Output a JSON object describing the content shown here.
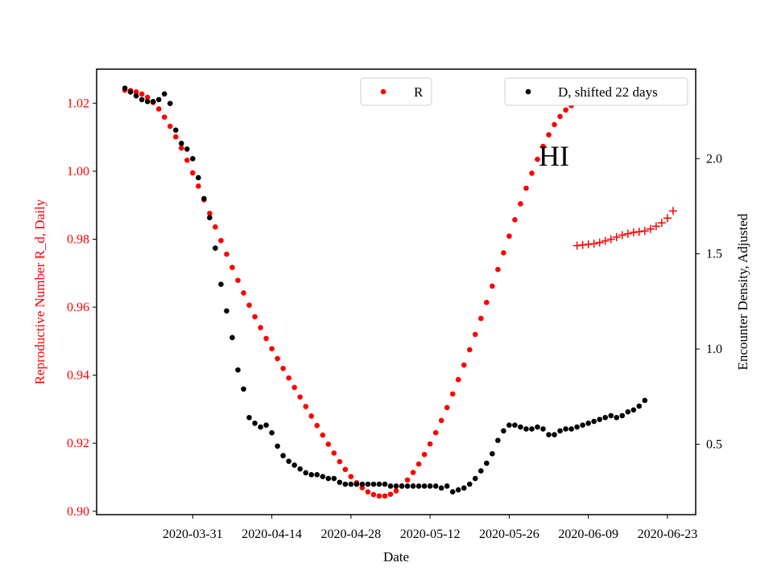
{
  "chart_data": {
    "type": "scatter",
    "annotation": "HI",
    "xlabel": "Date",
    "ylabel_left": "Reproductive Number R_d, Daily",
    "ylabel_right": "Encounter Density, Adjusted",
    "x_ticks": [
      "2020-03-31",
      "2020-04-14",
      "2020-04-28",
      "2020-05-12",
      "2020-05-26",
      "2020-06-09",
      "2020-06-23"
    ],
    "xlim": [
      "2020-03-14",
      "2020-06-28"
    ],
    "y_left_ticks": [
      "0.90",
      "0.92",
      "0.94",
      "0.96",
      "0.98",
      "1.00",
      "1.02"
    ],
    "y_left_lim": [
      0.899,
      1.03
    ],
    "y_right_ticks": [
      "0.5",
      "1.0",
      "1.5",
      "2.0"
    ],
    "y_right_lim": [
      0.13,
      2.47
    ],
    "colors": {
      "R": "#ff0000",
      "D": "#000000",
      "left_axis_text": "#ff0000",
      "right_axis_text": "#000000"
    },
    "legend": [
      {
        "label": "R",
        "color": "#ff0000",
        "position": "upper-center"
      },
      {
        "label": "D, shifted 22 days",
        "color": "#000000",
        "position": "upper-right"
      }
    ],
    "series": [
      {
        "name": "R",
        "axis": "left",
        "marker": "dot",
        "color": "#ff0000",
        "start_date": "2020-03-19",
        "values": [
          1.0238,
          1.0237,
          1.0233,
          1.0227,
          1.0217,
          1.0202,
          1.0183,
          1.0159,
          1.0132,
          1.0101,
          1.0068,
          1.0032,
          0.9995,
          0.9956,
          0.9916,
          0.9876,
          0.9836,
          0.9796,
          0.9756,
          0.9717,
          0.9679,
          0.9642,
          0.9606,
          0.9572,
          0.954,
          0.9508,
          0.9478,
          0.9449,
          0.942,
          0.9392,
          0.9364,
          0.9336,
          0.9308,
          0.928,
          0.9252,
          0.9224,
          0.9197,
          0.9171,
          0.9146,
          0.9123,
          0.9102,
          0.9084,
          0.9069,
          0.9057,
          0.9049,
          0.9045,
          0.9045,
          0.905,
          0.906,
          0.9074,
          0.9092,
          0.9114,
          0.9139,
          0.9167,
          0.9198,
          0.9231,
          0.9267,
          0.9305,
          0.9345,
          0.9387,
          0.943,
          0.9475,
          0.952,
          0.9567,
          0.9614,
          0.9662,
          0.9711,
          0.976,
          0.9809,
          0.9857,
          0.9904,
          0.995,
          0.9994,
          1.0035,
          1.0073,
          1.0107,
          1.0137,
          1.0161,
          1.018,
          1.0193,
          1.0201,
          1.0205
        ]
      },
      {
        "name": "R",
        "axis": "left",
        "marker": "plus",
        "color": "#ff0000",
        "start_date": "2020-06-07",
        "values": [
          0.9781,
          0.9783,
          0.9785,
          0.9787,
          0.979,
          0.9795,
          0.98,
          0.9806,
          0.9812,
          0.9816,
          0.982,
          0.9822,
          0.9824,
          0.983,
          0.9838,
          0.9848,
          0.9862,
          0.9883
        ]
      },
      {
        "name": "D, shifted 22 days",
        "axis": "right",
        "marker": "dot",
        "color": "#000000",
        "start_date": "2020-03-19",
        "values": [
          2.37,
          2.35,
          2.33,
          2.31,
          2.3,
          2.3,
          2.31,
          2.34,
          2.29,
          2.15,
          2.08,
          2.05,
          2.0,
          1.9,
          1.79,
          1.69,
          1.53,
          1.34,
          1.2,
          1.06,
          0.89,
          0.79,
          0.64,
          0.61,
          0.59,
          0.6,
          0.56,
          0.49,
          0.44,
          0.41,
          0.39,
          0.37,
          0.35,
          0.34,
          0.34,
          0.33,
          0.32,
          0.32,
          0.3,
          0.29,
          0.29,
          0.29,
          0.29,
          0.29,
          0.29,
          0.29,
          0.29,
          0.28,
          0.28,
          0.28,
          0.28,
          0.28,
          0.28,
          0.28,
          0.28,
          0.28,
          0.27,
          0.28,
          0.25,
          0.26,
          0.27,
          0.29,
          0.32,
          0.36,
          0.4,
          0.45,
          0.52,
          0.57,
          0.6,
          0.6,
          0.59,
          0.58,
          0.58,
          0.59,
          0.58,
          0.55,
          0.55,
          0.57,
          0.58,
          0.58,
          0.59,
          0.6,
          0.61,
          0.62,
          0.63,
          0.64,
          0.65,
          0.64,
          0.65,
          0.67,
          0.68,
          0.7,
          0.73
        ]
      }
    ]
  }
}
